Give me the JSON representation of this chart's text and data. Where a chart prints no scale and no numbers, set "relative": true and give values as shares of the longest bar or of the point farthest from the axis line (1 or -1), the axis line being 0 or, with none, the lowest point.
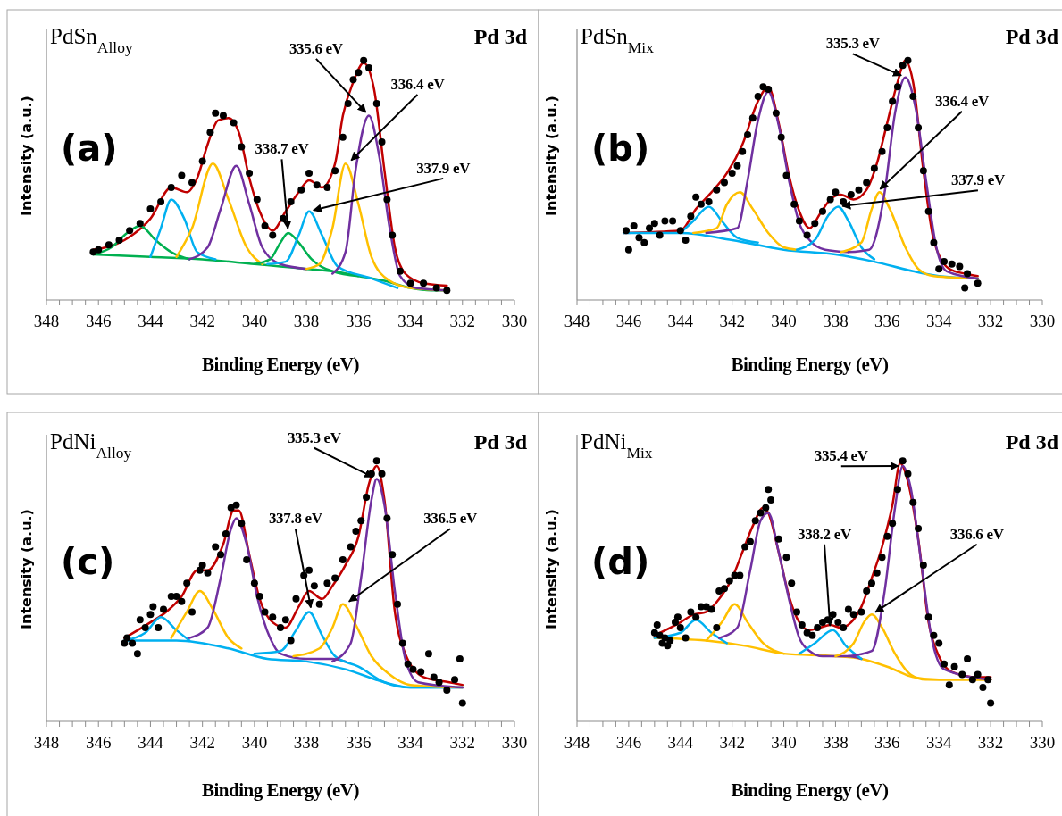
{
  "chart_data": [
    {
      "type": "line",
      "title": "PdSn$_{Alloy}$",
      "xlabel": "Binding Energy (eV)",
      "ylabel": "Intensity (a.u.)",
      "relative": true,
      "xlim": [
        348,
        330
      ],
      "xticks": [
        348,
        {
          "value": 347.5,
          "label": null
        },
        {
          "value": 347,
          "label": null
        },
        {
          "value": 346.5,
          "label": null
        },
        346,
        {
          "value": 345.5,
          "label": null
        },
        {
          "value": 345,
          "label": null
        },
        {
          "value": 344.5,
          "label": null
        },
        344,
        {
          "value": 343.5,
          "label": null
        },
        {
          "value": 343,
          "label": null
        },
        {
          "value": 342.5,
          "label": null
        },
        342,
        {
          "value": 341.5,
          "label": null
        },
        {
          "value": 341,
          "label": null
        },
        {
          "value": 340.5,
          "label": null
        },
        340,
        {
          "value": 339.5,
          "label": null
        },
        {
          "value": 339,
          "label": null
        },
        {
          "value": 338.5,
          "label": null
        },
        338,
        {
          "value": 337.5,
          "label": null
        },
        {
          "value": 337,
          "label": null
        },
        {
          "value": 336.5,
          "label": null
        },
        336,
        {
          "value": 335.5,
          "label": null
        },
        {
          "value": 335,
          "label": null
        },
        {
          "value": 334.5,
          "label": null
        },
        334,
        {
          "value": 333.5,
          "label": null
        },
        {
          "value": 333,
          "label": null
        },
        {
          "value": 332.5,
          "label": null
        },
        332,
        {
          "value": 331.5,
          "label": null
        },
        {
          "value": 331,
          "label": null
        },
        {
          "value": 330.5,
          "label": null
        },
        330
      ],
      "annotations": [
        "(a)",
        "Pd 3d",
        {
          "text": "335.6 eV",
          "x": 335.6,
          "y": 0.77
        },
        {
          "text": "336.4 eV",
          "x": 336.4,
          "y": 0.57
        },
        {
          "text": "338.7 eV",
          "x": 338.7,
          "y": 0.28
        },
        {
          "text": "337.9 eV",
          "x": 337.9,
          "y": 0.37
        }
      ],
      "series": [
        {
          "type": "scatter",
          "marker": "circle",
          "color": "#000000",
          "x": [
            346.2,
            346,
            345.6,
            345.2,
            344.8,
            344.4,
            344,
            343.6,
            343.2,
            342.8,
            342.4,
            342,
            341.7,
            341.5,
            341.2,
            340.8,
            340.5,
            340.2,
            339.9,
            339.6,
            339.3,
            338.9,
            338.6,
            338.2,
            337.9,
            337.6,
            337.2,
            336.9,
            336.6,
            336.4,
            336.2,
            336,
            335.8,
            335.6,
            335.3,
            335.1,
            334.9,
            334.7,
            334.4,
            334,
            333.5,
            333,
            332.6
          ],
          "values": [
            0.2,
            0.21,
            0.23,
            0.25,
            0.29,
            0.32,
            0.38,
            0.41,
            0.47,
            0.52,
            0.49,
            0.58,
            0.7,
            0.78,
            0.77,
            0.74,
            0.64,
            0.53,
            0.42,
            0.31,
            0.27,
            0.34,
            0.41,
            0.46,
            0.53,
            0.48,
            0.47,
            0.54,
            0.68,
            0.82,
            0.92,
            0.95,
            1.0,
            0.97,
            0.82,
            0.66,
            0.42,
            0.27,
            0.12,
            0.07,
            0.07,
            0.05,
            0.04
          ]
        },
        {
          "color": "#c00000",
          "x": [
            346.2,
            345,
            344,
            343.2,
            342.6,
            342.2,
            341.8,
            341.4,
            341,
            340.6,
            340.2,
            339.8,
            339.3,
            338.8,
            338.3,
            337.9,
            337.4,
            336.9,
            336.6,
            336.2,
            335.8,
            335.4,
            335,
            334.6,
            334.2,
            333.5,
            332.6
          ],
          "values": [
            0.21,
            0.25,
            0.34,
            0.47,
            0.45,
            0.51,
            0.65,
            0.75,
            0.76,
            0.7,
            0.51,
            0.37,
            0.29,
            0.37,
            0.45,
            0.5,
            0.47,
            0.57,
            0.77,
            0.91,
            0.99,
            0.88,
            0.54,
            0.22,
            0.11,
            0.07,
            0.06
          ]
        },
        {
          "color": "#00b050",
          "x": [
            346.2,
            344,
            342,
            340,
            339,
            338,
            337,
            336,
            335,
            334,
            333.2,
            332.6
          ],
          "values": [
            0.19,
            0.18,
            0.17,
            0.15,
            0.14,
            0.13,
            0.12,
            0.1,
            0.08,
            0.05,
            0.04,
            0.04
          ]
        },
        {
          "color": "#00b050",
          "x": [
            346.2,
            345.5,
            344.9,
            344.4,
            343.8,
            343.2,
            342.5
          ],
          "values": [
            0.19,
            0.22,
            0.28,
            0.31,
            0.25,
            0.2,
            0.17
          ]
        },
        {
          "color": "#00b0f0",
          "x": [
            344,
            343.6,
            343.2,
            342.7,
            342.2,
            341.5
          ],
          "values": [
            0.18,
            0.3,
            0.42,
            0.34,
            0.2,
            0.17
          ]
        },
        {
          "color": "#ffc000",
          "x": [
            343,
            342.4,
            341.6,
            341,
            340.3,
            339.7
          ],
          "values": [
            0.18,
            0.3,
            0.57,
            0.42,
            0.22,
            0.15
          ]
        },
        {
          "color": "#7030a0",
          "x": [
            342.5,
            341.8,
            341.3,
            340.7,
            340.2,
            339.7,
            339,
            338
          ],
          "values": [
            0.17,
            0.22,
            0.38,
            0.56,
            0.4,
            0.22,
            0.15,
            0.13
          ]
        },
        {
          "color": "#00b050",
          "x": [
            340,
            339.4,
            339,
            338.7,
            338.3,
            337.8,
            337,
            336
          ],
          "values": [
            0.15,
            0.17,
            0.24,
            0.28,
            0.24,
            0.17,
            0.12,
            0.1
          ]
        },
        {
          "color": "#00b0f0",
          "x": [
            339.5,
            338.8,
            338.3,
            337.9,
            337.4,
            336.8,
            335.5,
            334.5
          ],
          "values": [
            0.15,
            0.16,
            0.27,
            0.37,
            0.27,
            0.14,
            0.09,
            0.05
          ]
        },
        {
          "color": "#ffc000",
          "x": [
            338,
            337.5,
            337,
            336.5,
            336,
            335.5,
            334.8,
            334,
            332.6
          ],
          "values": [
            0.13,
            0.15,
            0.3,
            0.57,
            0.4,
            0.18,
            0.08,
            0.05,
            0.04
          ]
        },
        {
          "color": "#7030a0",
          "x": [
            337,
            336.5,
            336.1,
            335.6,
            335.2,
            334.8,
            334.4,
            333.8,
            332.6
          ],
          "values": [
            0.11,
            0.2,
            0.55,
            0.77,
            0.6,
            0.3,
            0.1,
            0.05,
            0.04
          ]
        }
      ]
    },
    {
      "type": "line",
      "title": "PdSn$_{Mix}$",
      "xlabel": "Binding Energy (eV)",
      "ylabel": "Intensity (a.u.)",
      "relative": true,
      "xlim": [
        348,
        330
      ],
      "xticks": [
        348,
        {
          "value": 347.5,
          "label": null
        },
        {
          "value": 347,
          "label": null
        },
        {
          "value": 346.5,
          "label": null
        },
        346,
        {
          "value": 345.5,
          "label": null
        },
        {
          "value": 345,
          "label": null
        },
        {
          "value": 344.5,
          "label": null
        },
        344,
        {
          "value": 343.5,
          "label": null
        },
        {
          "value": 343,
          "label": null
        },
        {
          "value": 342.5,
          "label": null
        },
        342,
        {
          "value": 341.5,
          "label": null
        },
        {
          "value": 341,
          "label": null
        },
        {
          "value": 340.5,
          "label": null
        },
        340,
        {
          "value": 339.5,
          "label": null
        },
        {
          "value": 339,
          "label": null
        },
        {
          "value": 338.5,
          "label": null
        },
        338,
        {
          "value": 337.5,
          "label": null
        },
        {
          "value": 337,
          "label": null
        },
        {
          "value": 336.5,
          "label": null
        },
        336,
        {
          "value": 335.5,
          "label": null
        },
        {
          "value": 335,
          "label": null
        },
        {
          "value": 334.5,
          "label": null
        },
        334,
        {
          "value": 333.5,
          "label": null
        },
        {
          "value": 333,
          "label": null
        },
        {
          "value": 332.5,
          "label": null
        },
        332,
        {
          "value": 331.5,
          "label": null
        },
        {
          "value": 331,
          "label": null
        },
        {
          "value": 330.5,
          "label": null
        },
        330
      ],
      "annotations": [
        "(b)",
        "Pd 3d",
        {
          "text": "335.3 eV",
          "x": 335.3,
          "y": 0.93
        },
        {
          "text": "336.4 eV",
          "x": 336.4,
          "y": 0.45
        },
        {
          "text": "337.9 eV",
          "x": 337.9,
          "y": 0.39
        }
      ],
      "series": [
        {
          "type": "scatter",
          "marker": "circle",
          "color": "#000000",
          "x": [
            346.1,
            346,
            345.8,
            345.6,
            345.4,
            345.2,
            345,
            344.8,
            344.6,
            344.3,
            344,
            343.8,
            343.6,
            343.4,
            343.2,
            342.9,
            342.6,
            342.3,
            342,
            341.8,
            341.6,
            341.4,
            341.2,
            341,
            340.8,
            340.6,
            340.3,
            340.1,
            339.9,
            339.6,
            339.4,
            339.1,
            338.8,
            338.5,
            338.2,
            338,
            337.7,
            337.4,
            337.1,
            336.8,
            336.5,
            336.2,
            336,
            335.8,
            335.6,
            335.4,
            335.2,
            335,
            334.8,
            334.6,
            334.4,
            334.2,
            334,
            333.8,
            333.5,
            333.2,
            333,
            332.9,
            332.5
          ],
          "values": [
            0.29,
            0.21,
            0.31,
            0.26,
            0.24,
            0.3,
            0.32,
            0.27,
            0.33,
            0.33,
            0.29,
            0.25,
            0.35,
            0.43,
            0.4,
            0.41,
            0.46,
            0.49,
            0.53,
            0.56,
            0.62,
            0.69,
            0.76,
            0.85,
            0.89,
            0.88,
            0.78,
            0.68,
            0.52,
            0.4,
            0.33,
            0.27,
            0.32,
            0.37,
            0.42,
            0.45,
            0.41,
            0.44,
            0.46,
            0.49,
            0.55,
            0.62,
            0.72,
            0.83,
            0.89,
            0.98,
            1.0,
            0.85,
            0.72,
            0.54,
            0.37,
            0.24,
            0.13,
            0.16,
            0.15,
            0.14,
            0.05,
            0.11,
            0.07
          ]
        },
        {
          "color": "#c00000",
          "x": [
            346.2,
            344,
            343.4,
            342.8,
            342.2,
            341.6,
            341,
            340.6,
            340.2,
            339.8,
            339.4,
            339,
            338.6,
            338.2,
            337.8,
            337.3,
            336.8,
            336.4,
            336,
            335.6,
            335.3,
            335,
            334.6,
            334.2,
            333.6,
            333,
            332.5
          ],
          "values": [
            0.28,
            0.29,
            0.38,
            0.45,
            0.53,
            0.65,
            0.83,
            0.89,
            0.74,
            0.52,
            0.37,
            0.3,
            0.36,
            0.42,
            0.44,
            0.42,
            0.46,
            0.57,
            0.74,
            0.91,
            1.0,
            0.91,
            0.54,
            0.25,
            0.13,
            0.11,
            0.1
          ]
        },
        {
          "color": "#00b0f0",
          "x": [
            346.2,
            344,
            342,
            340,
            338,
            336.5,
            335,
            334,
            332.5
          ],
          "values": [
            0.28,
            0.28,
            0.25,
            0.21,
            0.19,
            0.16,
            0.12,
            0.1,
            0.09
          ]
        },
        {
          "color": "#00b0f0",
          "x": [
            344,
            343.5,
            342.9,
            342.4,
            341.8,
            341
          ],
          "values": [
            0.28,
            0.33,
            0.39,
            0.33,
            0.26,
            0.24
          ]
        },
        {
          "color": "#ffc000",
          "x": [
            343.5,
            342.6,
            342.2,
            341.7,
            341.2,
            340.6,
            340,
            339.5
          ],
          "values": [
            0.28,
            0.3,
            0.4,
            0.45,
            0.38,
            0.28,
            0.22,
            0.21
          ]
        },
        {
          "color": "#7030a0",
          "x": [
            343,
            341.8,
            341.4,
            341,
            340.6,
            340.2,
            339.8,
            339.4,
            339,
            338.4,
            337.5
          ],
          "values": [
            0.28,
            0.3,
            0.5,
            0.75,
            0.87,
            0.73,
            0.5,
            0.32,
            0.25,
            0.21,
            0.2
          ]
        },
        {
          "color": "#00b0f0",
          "x": [
            339.5,
            338.8,
            338.3,
            337.9,
            337.5,
            337,
            336.5
          ],
          "values": [
            0.21,
            0.25,
            0.35,
            0.39,
            0.33,
            0.22,
            0.17
          ]
        },
        {
          "color": "#ffc000",
          "x": [
            337.8,
            337,
            336.6,
            336.3,
            335.9,
            335.3,
            334.8,
            334.2,
            332.5
          ],
          "values": [
            0.2,
            0.24,
            0.38,
            0.45,
            0.38,
            0.22,
            0.13,
            0.1,
            0.09
          ]
        },
        {
          "color": "#7030a0",
          "x": [
            337.5,
            336.7,
            336.1,
            335.7,
            335.3,
            334.9,
            334.5,
            334.1,
            333.7,
            332.5
          ],
          "values": [
            0.2,
            0.21,
            0.45,
            0.78,
            0.93,
            0.8,
            0.5,
            0.22,
            0.12,
            0.09
          ]
        }
      ]
    },
    {
      "type": "line",
      "title": "PdNi$_{Alloy}$",
      "xlabel": "Binding Energy (eV)",
      "ylabel": "Intensity (a.u.)",
      "relative": true,
      "xlim": [
        348,
        330
      ],
      "xticks": [
        348,
        {
          "value": 347.5,
          "label": null
        },
        {
          "value": 347,
          "label": null
        },
        {
          "value": 346.5,
          "label": null
        },
        346,
        {
          "value": 345.5,
          "label": null
        },
        {
          "value": 345,
          "label": null
        },
        {
          "value": 344.5,
          "label": null
        },
        344,
        {
          "value": 343.5,
          "label": null
        },
        {
          "value": 343,
          "label": null
        },
        {
          "value": 342.5,
          "label": null
        },
        342,
        {
          "value": 341.5,
          "label": null
        },
        {
          "value": 341,
          "label": null
        },
        {
          "value": 340.5,
          "label": null
        },
        340,
        {
          "value": 339.5,
          "label": null
        },
        {
          "value": 339,
          "label": null
        },
        {
          "value": 338.5,
          "label": null
        },
        338,
        {
          "value": 337.5,
          "label": null
        },
        {
          "value": 337,
          "label": null
        },
        {
          "value": 336.5,
          "label": null
        },
        336,
        {
          "value": 335.5,
          "label": null
        },
        {
          "value": 335,
          "label": null
        },
        {
          "value": 334.5,
          "label": null
        },
        334,
        {
          "value": 333.5,
          "label": null
        },
        {
          "value": 333,
          "label": null
        },
        {
          "value": 332.5,
          "label": null
        },
        332,
        {
          "value": 331.5,
          "label": null
        },
        {
          "value": 331,
          "label": null
        },
        {
          "value": 330.5,
          "label": null
        },
        330
      ],
      "annotations": [
        "(c)",
        "Pd 3d",
        {
          "text": "335.3 eV",
          "x": 335.3,
          "y": 0.93
        },
        {
          "text": "337.8 eV",
          "x": 337.8,
          "y": 0.42
        },
        {
          "text": "336.5 eV",
          "x": 336.5,
          "y": 0.45
        }
      ],
      "series": [
        {
          "type": "scatter",
          "marker": "circle",
          "color": "#000000",
          "x": [
            345,
            344.9,
            344.7,
            344.5,
            344.4,
            344.2,
            344,
            343.9,
            343.7,
            343.5,
            343.2,
            343,
            342.8,
            342.6,
            342.4,
            342.1,
            342,
            341.8,
            341.5,
            341.3,
            341.1,
            340.9,
            340.7,
            340.5,
            340.3,
            340,
            339.8,
            339.6,
            339.3,
            339,
            338.8,
            338.6,
            338.4,
            338.1,
            337.9,
            337.7,
            337.5,
            337.2,
            336.9,
            336.6,
            336.3,
            336.1,
            335.9,
            335.7,
            335.5,
            335.3,
            335.1,
            334.9,
            334.7,
            334.5,
            334.3,
            334.1,
            333.9,
            333.6,
            333.3,
            333.1,
            332.9,
            332.6,
            332.3,
            332.1,
            332
          ],
          "values": [
            0.3,
            0.32,
            0.3,
            0.26,
            0.39,
            0.36,
            0.41,
            0.44,
            0.36,
            0.43,
            0.48,
            0.48,
            0.46,
            0.53,
            0.42,
            0.58,
            0.6,
            0.57,
            0.67,
            0.64,
            0.72,
            0.82,
            0.83,
            0.76,
            0.62,
            0.53,
            0.48,
            0.42,
            0.4,
            0.36,
            0.39,
            0.31,
            0.47,
            0.56,
            0.58,
            0.52,
            0.45,
            0.53,
            0.55,
            0.62,
            0.67,
            0.73,
            0.77,
            0.86,
            0.95,
            1.0,
            0.95,
            0.78,
            0.64,
            0.45,
            0.3,
            0.22,
            0.2,
            0.19,
            0.26,
            0.17,
            0.15,
            0.12,
            0.16,
            0.24,
            0.07
          ]
        },
        {
          "color": "#c00000",
          "x": [
            345,
            344,
            343.4,
            342.8,
            342.2,
            341.8,
            341.2,
            340.8,
            340.6,
            340.2,
            339.8,
            339.3,
            338.8,
            338.3,
            337.9,
            337.4,
            337,
            336.5,
            336,
            335.6,
            335.3,
            335,
            334.6,
            334.2,
            333.5,
            332.5,
            332
          ],
          "values": [
            0.32,
            0.38,
            0.42,
            0.48,
            0.58,
            0.58,
            0.68,
            0.81,
            0.81,
            0.64,
            0.47,
            0.38,
            0.36,
            0.44,
            0.5,
            0.47,
            0.52,
            0.6,
            0.71,
            0.91,
            0.98,
            0.85,
            0.42,
            0.26,
            0.17,
            0.15,
            0.14
          ]
        },
        {
          "color": "#00b0f0",
          "x": [
            345,
            343,
            341,
            339.5,
            338,
            336.5,
            335,
            334,
            332
          ],
          "values": [
            0.31,
            0.31,
            0.28,
            0.24,
            0.23,
            0.2,
            0.15,
            0.13,
            0.13
          ]
        },
        {
          "color": "#00b0f0",
          "x": [
            345,
            344.2,
            343.6,
            343,
            342.5
          ],
          "values": [
            0.31,
            0.34,
            0.4,
            0.35,
            0.31
          ]
        },
        {
          "color": "#ffc000",
          "x": [
            343.2,
            342.6,
            342.1,
            341.6,
            341,
            340.5
          ],
          "values": [
            0.32,
            0.42,
            0.5,
            0.43,
            0.32,
            0.28
          ]
        },
        {
          "color": "#7030a0",
          "x": [
            342.5,
            341.8,
            341.3,
            340.9,
            340.7,
            340.3,
            339.9,
            339.4,
            339,
            338,
            337,
            336.5
          ],
          "values": [
            0.32,
            0.36,
            0.55,
            0.74,
            0.78,
            0.68,
            0.48,
            0.32,
            0.26,
            0.24,
            0.24,
            0.23
          ]
        },
        {
          "color": "#00b0f0",
          "x": [
            340,
            339,
            338.4,
            337.9,
            337.4,
            336.9,
            336,
            335,
            334,
            332
          ],
          "values": [
            0.26,
            0.27,
            0.35,
            0.42,
            0.33,
            0.25,
            0.21,
            0.15,
            0.13,
            0.13
          ]
        },
        {
          "color": "#ffc000",
          "x": [
            338.5,
            337.5,
            337,
            336.6,
            336.1,
            335.5,
            334.8,
            334,
            332
          ],
          "values": [
            0.25,
            0.28,
            0.36,
            0.45,
            0.37,
            0.25,
            0.18,
            0.14,
            0.13
          ]
        },
        {
          "color": "#7030a0",
          "x": [
            337,
            336.3,
            335.9,
            335.5,
            335.3,
            335,
            334.6,
            334.2,
            333.7,
            332
          ],
          "values": [
            0.23,
            0.3,
            0.55,
            0.85,
            0.93,
            0.83,
            0.5,
            0.24,
            0.15,
            0.13
          ]
        }
      ]
    },
    {
      "type": "line",
      "title": "PdNi$_{Mix}$",
      "xlabel": "Binding Energy (eV)",
      "ylabel": "Intensity (a.u.)",
      "relative": true,
      "xlim": [
        348,
        330
      ],
      "xticks": [
        348,
        {
          "value": 347.5,
          "label": null
        },
        {
          "value": 347,
          "label": null
        },
        {
          "value": 346.5,
          "label": null
        },
        346,
        {
          "value": 345.5,
          "label": null
        },
        {
          "value": 345,
          "label": null
        },
        {
          "value": 344.5,
          "label": null
        },
        344,
        {
          "value": 343.5,
          "label": null
        },
        {
          "value": 343,
          "label": null
        },
        {
          "value": 342.5,
          "label": null
        },
        342,
        {
          "value": 341.5,
          "label": null
        },
        {
          "value": 341,
          "label": null
        },
        {
          "value": 340.5,
          "label": null
        },
        340,
        {
          "value": 339.5,
          "label": null
        },
        {
          "value": 339,
          "label": null
        },
        {
          "value": 338.5,
          "label": null
        },
        338,
        {
          "value": 337.5,
          "label": null
        },
        {
          "value": 337,
          "label": null
        },
        {
          "value": 336.5,
          "label": null
        },
        336,
        {
          "value": 335.5,
          "label": null
        },
        {
          "value": 335,
          "label": null
        },
        {
          "value": 334.5,
          "label": null
        },
        334,
        {
          "value": 333.5,
          "label": null
        },
        {
          "value": 333,
          "label": null
        },
        {
          "value": 332.5,
          "label": null
        },
        332,
        {
          "value": 331.5,
          "label": null
        },
        {
          "value": 331,
          "label": null
        },
        {
          "value": 330.5,
          "label": null
        },
        330
      ],
      "annotations": [
        "(d)",
        "Pd 3d",
        {
          "text": "335.4 eV",
          "x": 335.4,
          "y": 0.98
        },
        {
          "text": "338.2 eV",
          "x": 338.2,
          "y": 0.35
        },
        {
          "text": "336.6 eV",
          "x": 336.6,
          "y": 0.41
        }
      ],
      "series": [
        {
          "type": "scatter",
          "marker": "circle",
          "color": "#000000",
          "x": [
            345,
            344.9,
            344.8,
            344.7,
            344.6,
            344.5,
            344.4,
            344.2,
            344.1,
            344,
            343.8,
            343.6,
            343.4,
            343.2,
            343,
            342.8,
            342.6,
            342.5,
            342.3,
            342.1,
            341.9,
            341.7,
            341.5,
            341.3,
            341.1,
            340.9,
            340.7,
            340.6,
            340.5,
            340.2,
            339.9,
            339.7,
            339.5,
            339.3,
            339.1,
            338.9,
            338.7,
            338.5,
            338.3,
            338.1,
            337.9,
            337.7,
            337.5,
            337.3,
            337,
            336.8,
            336.6,
            336.4,
            336.2,
            336,
            335.8,
            335.6,
            335.4,
            335.2,
            335,
            334.8,
            334.6,
            334.4,
            334.2,
            334,
            333.8,
            333.6,
            333.4,
            333.1,
            332.9,
            332.7,
            332.5,
            332.3,
            332.1,
            332
          ],
          "values": [
            0.34,
            0.37,
            0.33,
            0.3,
            0.32,
            0.29,
            0.31,
            0.38,
            0.4,
            0.36,
            0.32,
            0.42,
            0.4,
            0.44,
            0.44,
            0.43,
            0.36,
            0.5,
            0.51,
            0.54,
            0.56,
            0.56,
            0.67,
            0.69,
            0.77,
            0.8,
            0.82,
            0.89,
            0.85,
            0.7,
            0.63,
            0.53,
            0.42,
            0.37,
            0.34,
            0.33,
            0.36,
            0.38,
            0.39,
            0.41,
            0.38,
            0.36,
            0.43,
            0.41,
            0.42,
            0.5,
            0.53,
            0.57,
            0.63,
            0.71,
            0.76,
            0.89,
            1.0,
            0.95,
            0.84,
            0.74,
            0.6,
            0.4,
            0.33,
            0.3,
            0.22,
            0.14,
            0.21,
            0.18,
            0.24,
            0.16,
            0.18,
            0.13,
            0.16,
            0.07
          ]
        },
        {
          "color": "#c00000",
          "x": [
            345,
            344,
            343.5,
            343,
            342.5,
            342,
            341.6,
            341.2,
            340.8,
            340.6,
            340.2,
            339.8,
            339.4,
            339,
            338.6,
            338.2,
            337.8,
            337.4,
            337,
            336.6,
            336.2,
            335.8,
            335.5,
            335.2,
            334.8,
            334.4,
            334,
            333.5,
            332.5,
            332
          ],
          "values": [
            0.33,
            0.38,
            0.41,
            0.42,
            0.47,
            0.55,
            0.65,
            0.75,
            0.82,
            0.8,
            0.65,
            0.48,
            0.38,
            0.35,
            0.36,
            0.37,
            0.36,
            0.38,
            0.44,
            0.55,
            0.67,
            0.83,
            0.99,
            0.92,
            0.7,
            0.38,
            0.25,
            0.19,
            0.17,
            0.17
          ]
        },
        {
          "color": "#ffc000",
          "x": [
            345,
            343,
            341.5,
            340,
            338,
            337,
            336,
            335,
            334,
            332
          ],
          "values": [
            0.32,
            0.31,
            0.29,
            0.26,
            0.25,
            0.24,
            0.21,
            0.17,
            0.16,
            0.16
          ]
        },
        {
          "color": "#00b0f0",
          "x": [
            345,
            344,
            343.4,
            342.8,
            342.2
          ],
          "values": [
            0.32,
            0.34,
            0.39,
            0.34,
            0.3
          ]
        },
        {
          "color": "#ffc000",
          "x": [
            343,
            342.4,
            341.9,
            341.4,
            340.8,
            340
          ],
          "values": [
            0.31,
            0.38,
            0.45,
            0.38,
            0.3,
            0.26
          ]
        },
        {
          "color": "#7030a0",
          "x": [
            342.5,
            341.8,
            341.3,
            340.9,
            340.6,
            340.2,
            339.8,
            339.4,
            339,
            338.5,
            337.5,
            337
          ],
          "values": [
            0.32,
            0.36,
            0.58,
            0.77,
            0.8,
            0.65,
            0.47,
            0.32,
            0.27,
            0.25,
            0.25,
            0.24
          ]
        },
        {
          "color": "#00b0f0",
          "x": [
            339.4,
            338.8,
            338.1,
            337.6,
            337
          ],
          "values": [
            0.26,
            0.3,
            0.35,
            0.29,
            0.24
          ]
        },
        {
          "color": "#ffc000",
          "x": [
            338,
            337.3,
            336.9,
            336.6,
            336.2,
            335.7,
            335.1,
            334.5,
            332
          ],
          "values": [
            0.25,
            0.3,
            0.38,
            0.41,
            0.36,
            0.26,
            0.18,
            0.16,
            0.16
          ]
        },
        {
          "color": "#7030a0",
          "x": [
            337.5,
            336.6,
            336.1,
            335.7,
            335.4,
            335.1,
            334.7,
            334.3,
            333.8,
            332
          ],
          "values": [
            0.25,
            0.27,
            0.5,
            0.82,
            0.98,
            0.9,
            0.62,
            0.33,
            0.2,
            0.16
          ]
        }
      ]
    }
  ]
}
